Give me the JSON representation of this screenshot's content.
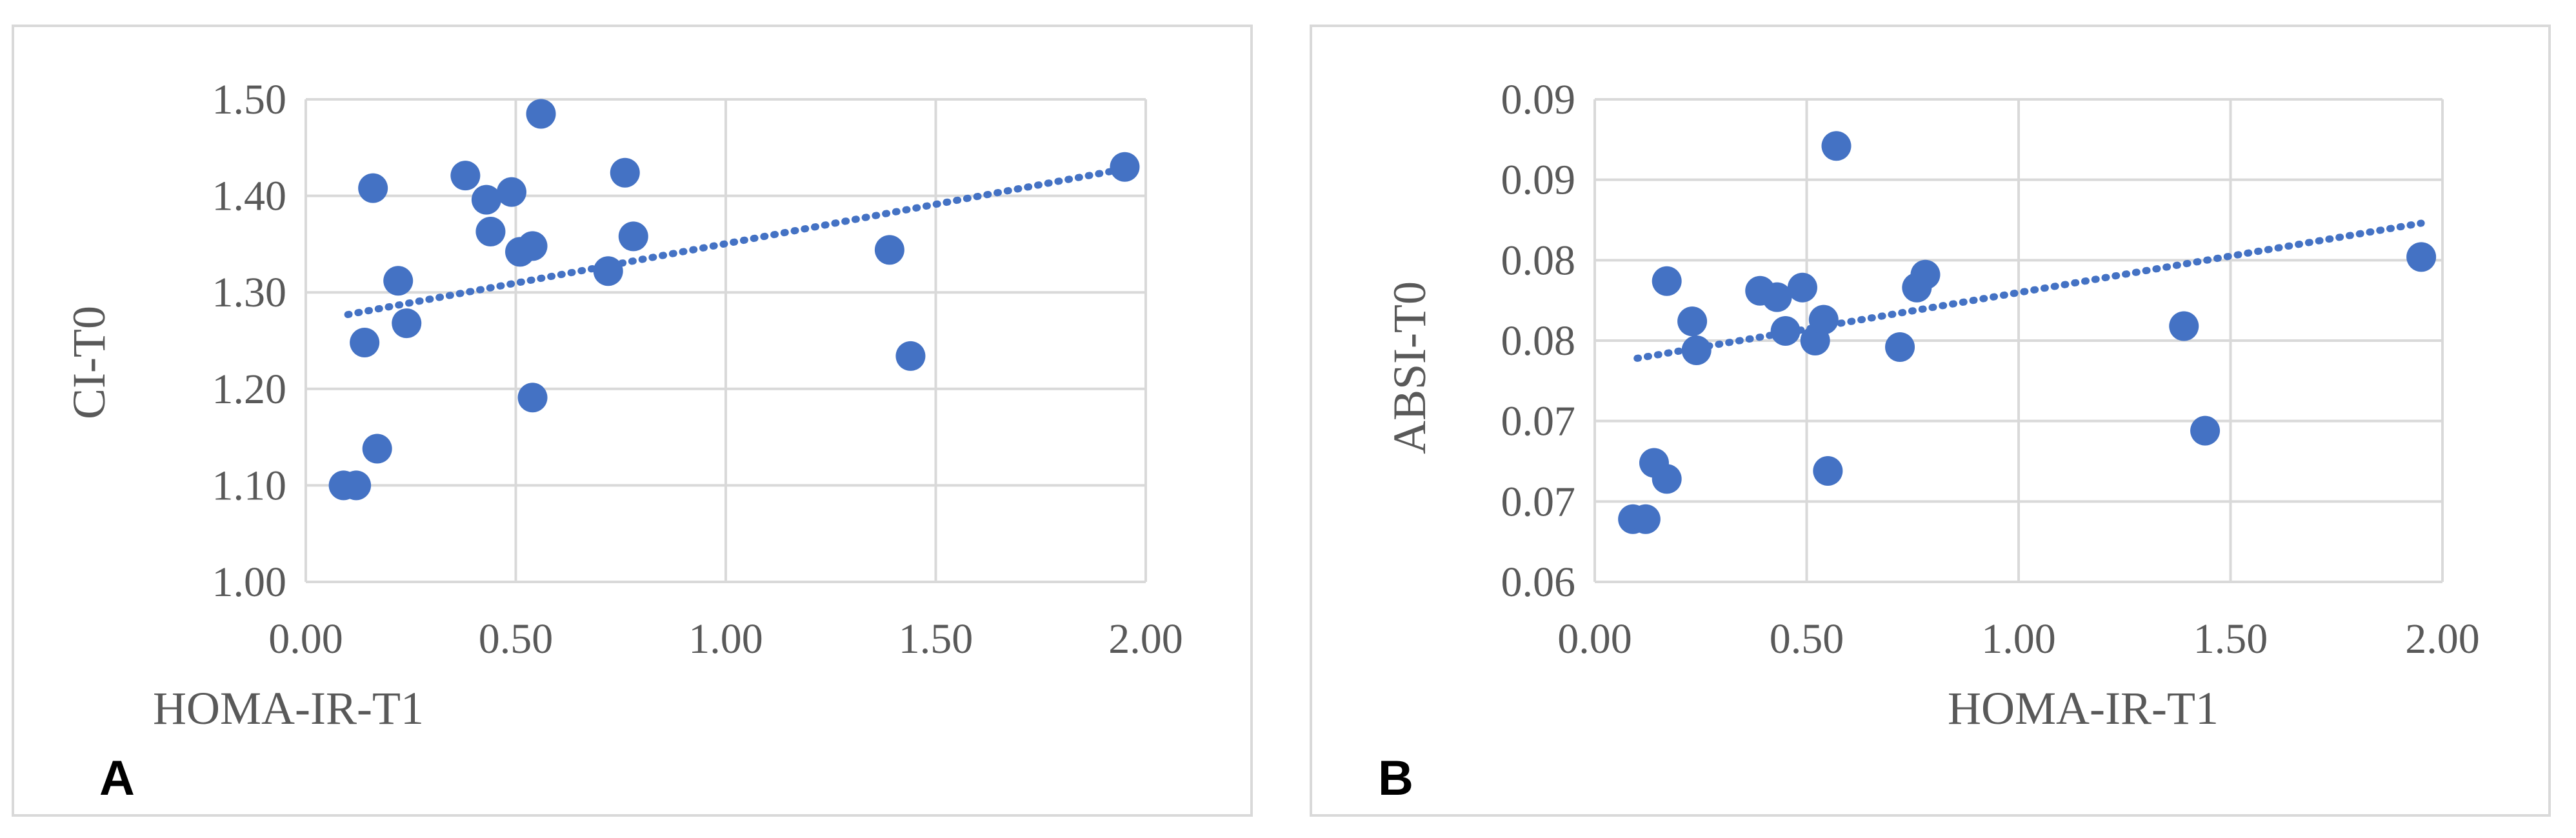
{
  "colors": {
    "marker": "#4472c4",
    "trend": "#4472c4",
    "grid": "#d9d9d9",
    "text": "#595959"
  },
  "chart_data": [
    {
      "type": "scatter",
      "panel_label": "A",
      "xlabel": "HOMA-IR-T1",
      "ylabel": "CI-T0",
      "xlim": [
        0,
        2
      ],
      "ylim": [
        1.0,
        1.5
      ],
      "x_ticks": [
        0,
        0.5,
        1.0,
        1.5,
        2.0
      ],
      "x_tick_labels": [
        "0.00",
        "0.50",
        "1.00",
        "1.50",
        "2.00"
      ],
      "y_ticks": [
        1.0,
        1.1,
        1.2,
        1.3,
        1.4,
        1.5
      ],
      "y_tick_labels": [
        "1.00",
        "1.10",
        "1.20",
        "1.30",
        "1.40",
        "1.50"
      ],
      "grid": true,
      "trendline": {
        "style": "dotted",
        "x": [
          0.1,
          1.95
        ],
        "y": [
          1.277,
          1.428
        ]
      },
      "series": [
        {
          "name": "CI-T0",
          "x": [
            0.09,
            0.12,
            0.14,
            0.16,
            0.17,
            0.22,
            0.24,
            0.38,
            0.43,
            0.44,
            0.49,
            0.51,
            0.54,
            0.54,
            0.56,
            0.72,
            0.76,
            0.78,
            1.39,
            1.44,
            1.95
          ],
          "y": [
            1.1,
            1.1,
            1.248,
            1.408,
            1.138,
            1.312,
            1.268,
            1.421,
            1.396,
            1.363,
            1.404,
            1.342,
            1.348,
            1.191,
            1.485,
            1.322,
            1.424,
            1.358,
            1.344,
            1.234,
            1.43
          ]
        }
      ]
    },
    {
      "type": "scatter",
      "panel_label": "B",
      "xlabel": "HOMA-IR-T1",
      "ylabel": "ABSI-T0",
      "xlim": [
        0,
        2
      ],
      "ylim": [
        0.0625,
        0.0925
      ],
      "x_ticks": [
        0,
        0.5,
        1.0,
        1.5,
        2.0
      ],
      "x_tick_labels": [
        "0.00",
        "0.50",
        "1.00",
        "1.50",
        "2.00"
      ],
      "y_ticks": [
        0.0625,
        0.0675,
        0.0725,
        0.0775,
        0.0825,
        0.0875,
        0.0925
      ],
      "y_tick_labels": [
        "0.06",
        "0.07",
        "0.07",
        "0.08",
        "0.08",
        "0.09",
        "0.09"
      ],
      "grid": true,
      "trendline": {
        "style": "dotted",
        "x": [
          0.1,
          1.95
        ],
        "y": [
          0.0764,
          0.0848
        ]
      },
      "series": [
        {
          "name": "ABSI-T0",
          "x": [
            0.09,
            0.12,
            0.14,
            0.17,
            0.17,
            0.23,
            0.24,
            0.39,
            0.43,
            0.45,
            0.49,
            0.52,
            0.54,
            0.55,
            0.57,
            0.72,
            0.76,
            0.78,
            1.39,
            1.44,
            1.95
          ],
          "y": [
            0.0664,
            0.0664,
            0.0699,
            0.0812,
            0.0689,
            0.0787,
            0.0769,
            0.0806,
            0.0802,
            0.0781,
            0.0808,
            0.0775,
            0.0788,
            0.0694,
            0.0896,
            0.0771,
            0.0808,
            0.0816,
            0.0784,
            0.0719,
            0.0827
          ]
        }
      ]
    }
  ]
}
